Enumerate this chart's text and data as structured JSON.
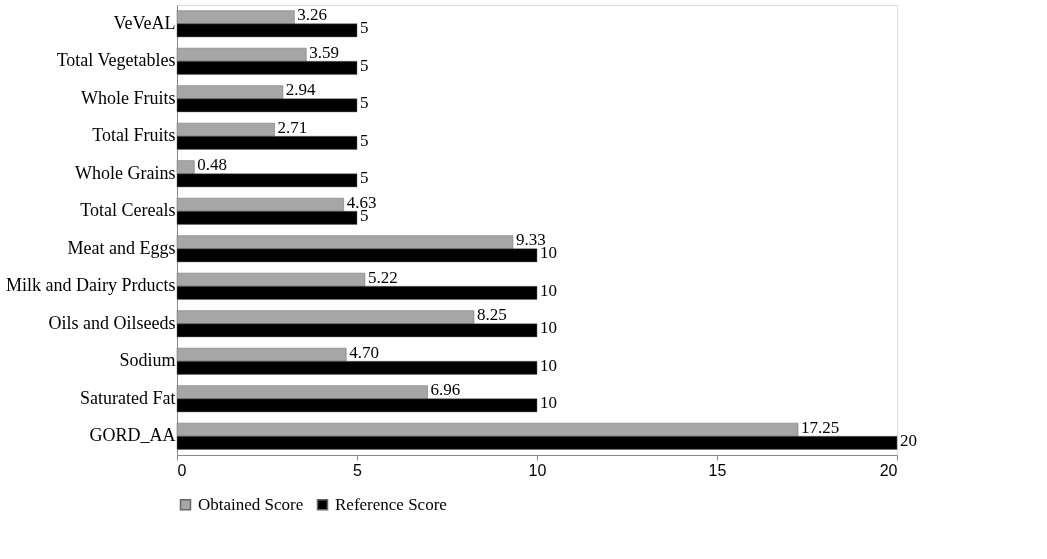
{
  "chart_data": {
    "type": "bar",
    "orientation": "horizontal",
    "categories": [
      "VeVeAL",
      "Total Vegetables",
      "Whole Fruits",
      "Total Fruits",
      "Whole Grains",
      "Total Cereals",
      "Meat and Eggs",
      "Milk and Dairy Prducts",
      "Oils and Oilseeds",
      "Sodium",
      "Saturated Fat",
      "GORD_AA"
    ],
    "series": [
      {
        "name": "Obtained Score",
        "color": "#a6a6a6",
        "values": [
          3.26,
          3.59,
          2.94,
          2.71,
          0.48,
          4.63,
          9.33,
          5.22,
          8.25,
          4.7,
          6.96,
          17.25
        ],
        "value_labels": [
          "3.26",
          "3.59",
          "2.94",
          "2.71",
          "0.48",
          "4.63",
          "9.33",
          "5.22",
          "8.25",
          "4.70",
          "6.96",
          "17.25"
        ]
      },
      {
        "name": "Reference Score",
        "color": "#000000",
        "values": [
          5,
          5,
          5,
          5,
          5,
          5,
          10,
          10,
          10,
          10,
          10,
          20
        ],
        "value_labels": [
          "5",
          "5",
          "5",
          "5",
          "5",
          "5",
          "10",
          "10",
          "10",
          "10",
          "10",
          "20"
        ]
      }
    ],
    "xlim": [
      0,
      20
    ],
    "xticks": [
      0,
      5,
      10,
      15,
      20
    ],
    "grid": false,
    "legend": "bottom"
  }
}
